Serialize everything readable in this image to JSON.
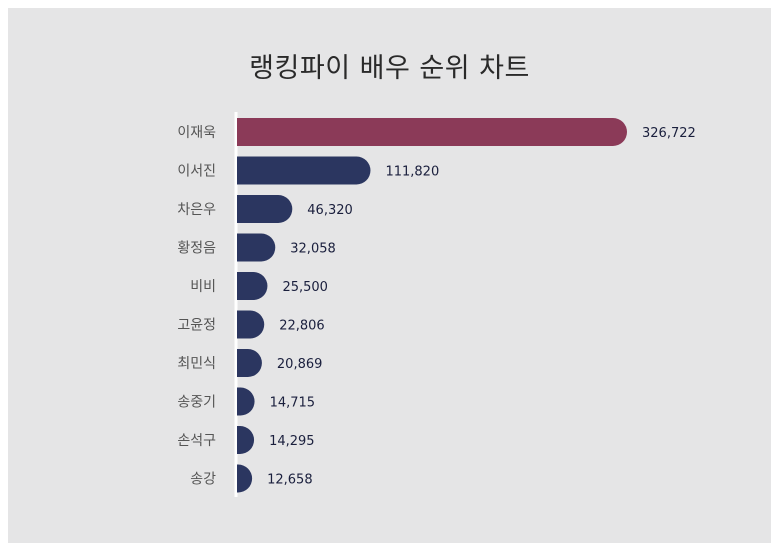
{
  "chart_data": {
    "type": "bar",
    "orientation": "horizontal",
    "title": "랭킹파이 배우 순위 차트",
    "categories": [
      "이재욱",
      "이서진",
      "차은우",
      "황정음",
      "비비",
      "고윤정",
      "최민식",
      "송중기",
      "손석구",
      "송강"
    ],
    "values": [
      326722,
      111820,
      46320,
      32058,
      25500,
      22806,
      20869,
      14715,
      14295,
      12658
    ],
    "value_labels": [
      "326,722",
      "111,820",
      "46,320",
      "32,058",
      "25,500",
      "22,806",
      "20,869",
      "14,715",
      "14,295",
      "12,658"
    ],
    "xlim": [
      0,
      326722
    ],
    "grid": false,
    "legend": "none",
    "colors": {
      "highlight": "#8b3a58",
      "bar": "#2b3660",
      "highlight_label": "#7a2a48",
      "label": "#1a1f3d",
      "background": "#e5e5e6",
      "axis": "#ffffff"
    }
  }
}
